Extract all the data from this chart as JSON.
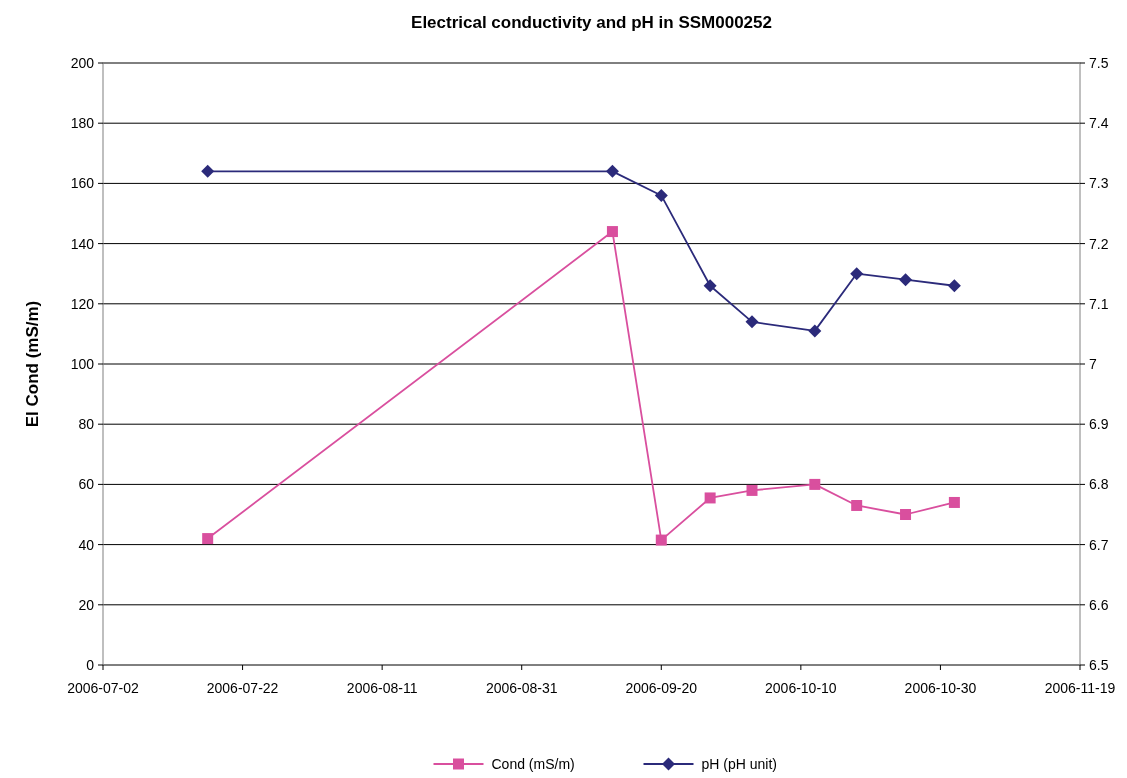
{
  "chart_data": {
    "type": "line",
    "title": "Electrical conductivity and pH in SSM000252",
    "ylabel": "El Cond (mS/m)",
    "x": [
      "2006-07-17",
      "2006-09-13",
      "2006-09-20",
      "2006-09-27",
      "2006-10-03",
      "2006-10-12",
      "2006-10-18",
      "2006-10-25",
      "2006-11-01"
    ],
    "series": [
      {
        "name": "Cond (mS/m)",
        "color": "#d94f9e",
        "marker": "square",
        "values": [
          42,
          144,
          41.5,
          55.5,
          58,
          60,
          53,
          50,
          54
        ]
      },
      {
        "name": "pH (pH unit)",
        "color": "#2b2a7a",
        "marker": "diamond",
        "axis": "y2",
        "values": [
          7.32,
          7.32,
          7.28,
          7.13,
          7.07,
          7.055,
          7.15,
          7.14,
          7.13
        ]
      }
    ],
    "xlim": [
      "2006-07-02",
      "2006-11-19"
    ],
    "xticks": [
      "2006-07-02",
      "2006-07-22",
      "2006-08-11",
      "2006-08-31",
      "2006-09-20",
      "2006-10-10",
      "2006-10-30",
      "2006-11-19"
    ],
    "ylim": [
      0,
      200
    ],
    "yticks": [
      0,
      20,
      40,
      60,
      80,
      100,
      120,
      140,
      160,
      180,
      200
    ],
    "y2lim": [
      6.5,
      7.5
    ],
    "y2ticks": [
      6.5,
      6.6,
      6.7,
      6.8,
      6.9,
      7,
      7.1,
      7.2,
      7.3,
      7.4,
      7.5
    ],
    "grid": "y",
    "legend": "bottom"
  }
}
